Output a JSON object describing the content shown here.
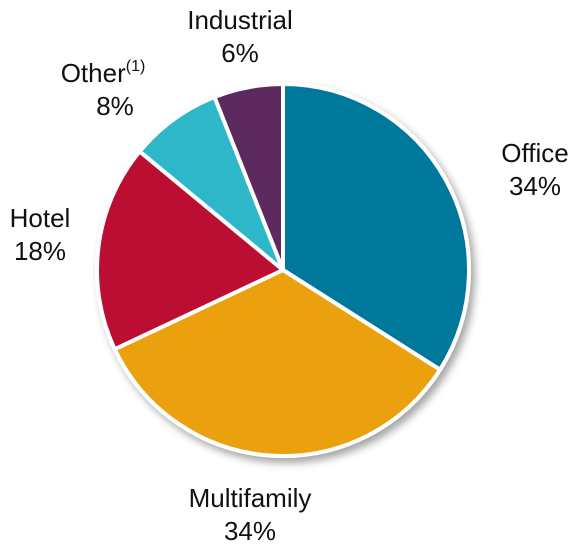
{
  "chart_data": {
    "type": "pie",
    "categories": [
      "Office",
      "Multifamily",
      "Hotel",
      "Other",
      "Industrial"
    ],
    "category_notes": [
      null,
      null,
      null,
      "(1)",
      null
    ],
    "values": [
      34,
      34,
      18,
      8,
      6
    ],
    "value_labels": [
      "34%",
      "34%",
      "18%",
      "8%",
      "6%"
    ],
    "colors": [
      "#00789c",
      "#eba10f",
      "#bc0f33",
      "#2eb6c9",
      "#5c2a5e"
    ]
  }
}
